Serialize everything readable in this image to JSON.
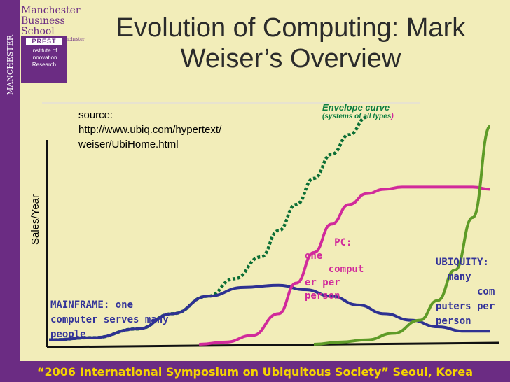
{
  "header": {
    "title": "Evolution of Computing: Mark Weiser’s Overview",
    "logo_name": "Manchester Business School",
    "logo_sub": "The University of Manchester",
    "prest_tag": "PREST",
    "prest_text": "Institute of Innovation Research",
    "side_logo": "MANCHESTER 1824"
  },
  "footer": {
    "text": "“2006 International Symposium on Ubiquitous Society” Seoul, Korea"
  },
  "colors": {
    "purple": "#6b2c83",
    "mainframe": "#2e3192",
    "pc": "#d12a9b",
    "ubiquity": "#5e9b27",
    "envelope": "#0b6e35",
    "gold": "#f5d400"
  },
  "chart_data": {
    "type": "line",
    "source": "source:\nhttp://www.ubiq.com/hypertext/\nweiser/UbiHome.html",
    "ylabel": "Sales/Year",
    "xlabel": "",
    "ylim": [
      0,
      100
    ],
    "xlim": [
      0,
      100
    ],
    "annotations": {
      "envelope_title": "Envelope curve",
      "envelope_sub_a": "(systems of all types",
      "envelope_sub_b": ")",
      "mainframe": "MAINFRAME: one\ncomputer serves many\npeople",
      "pc": "     PC:\none\n    comput\ner per\nperson",
      "ubiquity": "UBIQUITY:\n  many\n       com\nputers per\nperson"
    },
    "series": [
      {
        "key": "mainframe",
        "x": [
          0,
          10,
          20,
          28,
          36,
          44,
          52,
          58,
          64,
          70,
          76,
          82,
          88,
          94,
          100
        ],
        "y": [
          2,
          3,
          7,
          14,
          22,
          26,
          27,
          25,
          22,
          18,
          14,
          11,
          8,
          6,
          6
        ]
      },
      {
        "key": "pc",
        "x": [
          34,
          40,
          46,
          52,
          56,
          60,
          64,
          68,
          72,
          76,
          80,
          84,
          88,
          92,
          96,
          100
        ],
        "y": [
          0,
          1,
          4,
          14,
          28,
          42,
          55,
          64,
          69,
          71,
          72,
          72,
          72,
          72,
          72,
          71
        ]
      },
      {
        "key": "ubiquity",
        "x": [
          60,
          66,
          72,
          78,
          84,
          88,
          92,
          96,
          100
        ],
        "y": [
          0,
          1,
          2,
          5,
          11,
          20,
          34,
          58,
          100
        ]
      },
      {
        "key": "envelope",
        "x": [
          0,
          10,
          20,
          28,
          36,
          42,
          48,
          52,
          56,
          60,
          64,
          68,
          72
        ],
        "y": [
          2,
          3,
          7,
          14,
          22,
          30,
          40,
          52,
          64,
          76,
          87,
          96,
          104
        ]
      }
    ]
  }
}
